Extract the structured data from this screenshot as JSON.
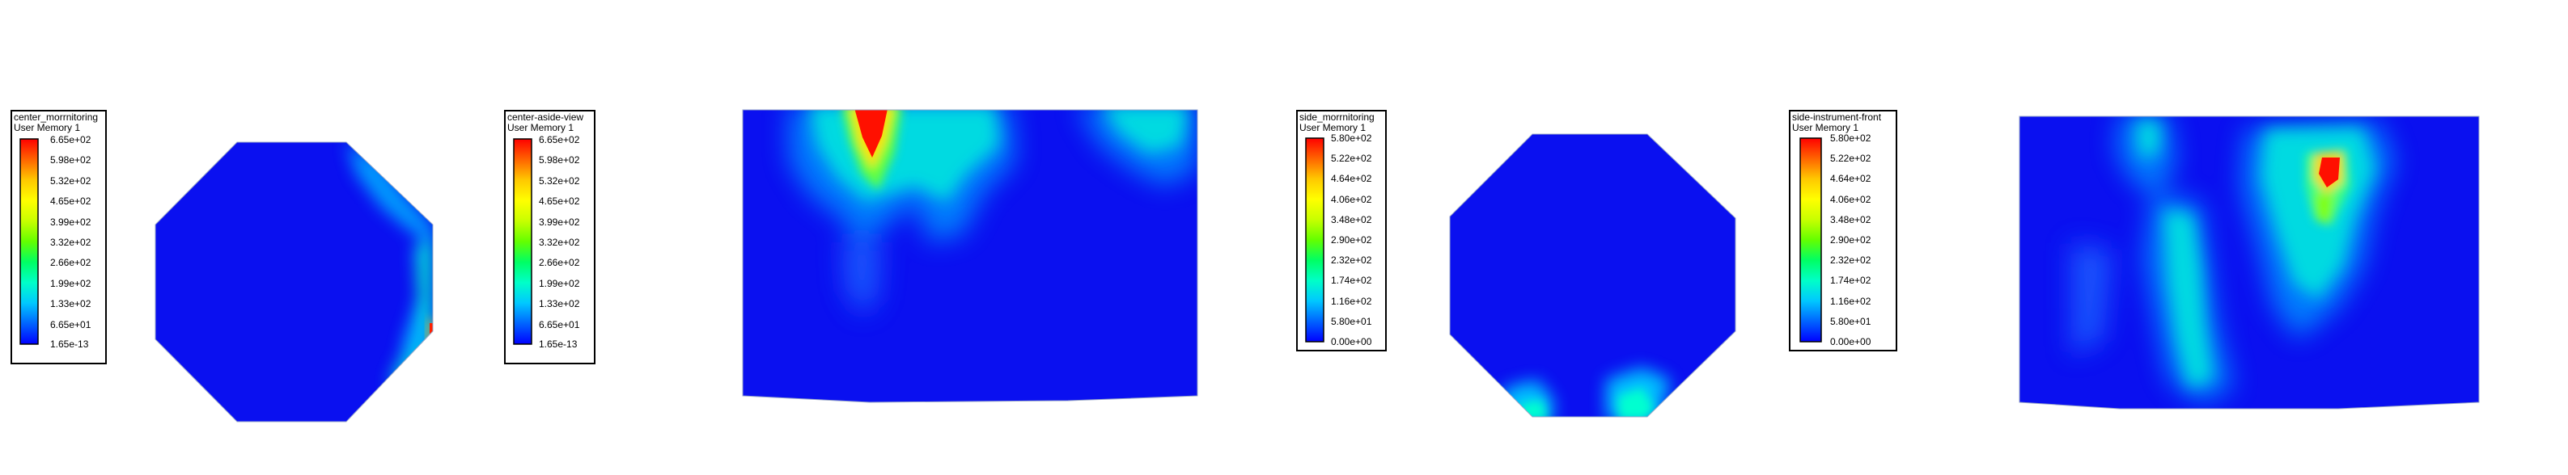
{
  "colormap": {
    "stops": [
      "#0000ff",
      "#0064ff",
      "#00c8ff",
      "#00ffc8",
      "#00ff64",
      "#64ff00",
      "#c8ff00",
      "#ffff00",
      "#ffc800",
      "#ff6400",
      "#ff0000"
    ],
    "background": "#0a10f0"
  },
  "legends": [
    {
      "title": "center_morrnitoring",
      "quantity": "User Memory 1",
      "ticks": [
        "6.65e+02",
        "5.98e+02",
        "5.32e+02",
        "4.65e+02",
        "3.99e+02",
        "3.32e+02",
        "2.66e+02",
        "1.99e+02",
        "1.33e+02",
        "6.65e+01",
        "1.65e-13"
      ]
    },
    {
      "title": "center-aside-view",
      "quantity": "User Memory 1",
      "ticks": [
        "6.65e+02",
        "5.98e+02",
        "5.32e+02",
        "4.65e+02",
        "3.99e+02",
        "3.32e+02",
        "2.66e+02",
        "1.99e+02",
        "1.33e+02",
        "6.65e+01",
        "1.65e-13"
      ]
    },
    {
      "title": "side_morrnitoring",
      "quantity": "User Memory 1",
      "ticks": [
        "5.80e+02",
        "5.22e+02",
        "4.64e+02",
        "4.06e+02",
        "3.48e+02",
        "2.90e+02",
        "2.32e+02",
        "1.74e+02",
        "1.16e+02",
        "5.80e+01",
        "0.00e+00"
      ]
    },
    {
      "title": "side-instrument-front",
      "quantity": "User Memory 1",
      "ticks": [
        "5.80e+02",
        "5.22e+02",
        "4.64e+02",
        "4.06e+02",
        "3.48e+02",
        "2.90e+02",
        "2.32e+02",
        "1.74e+02",
        "1.16e+02",
        "5.80e+01",
        "0.00e+00"
      ]
    }
  ]
}
